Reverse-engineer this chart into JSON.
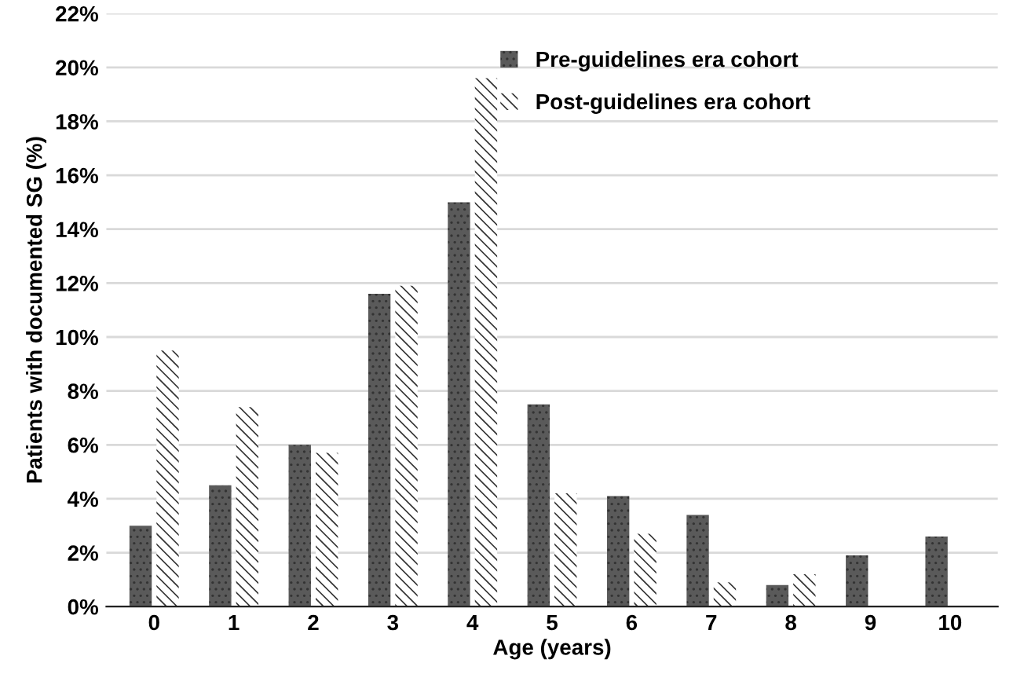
{
  "chart_data": {
    "type": "bar",
    "xlabel": "Age (years)",
    "ylabel": "Patients with documented SG (%)",
    "categories": [
      "0",
      "1",
      "2",
      "3",
      "4",
      "5",
      "6",
      "7",
      "8",
      "9",
      "10"
    ],
    "series": [
      {
        "name": "Pre-guidelines era cohort",
        "color": "#5a5a5a",
        "values": [
          3.0,
          4.5,
          6.0,
          11.6,
          15.0,
          7.5,
          4.1,
          3.4,
          0.8,
          1.9,
          2.6
        ]
      },
      {
        "name": "Post-guidelines era cohort",
        "color": "#ffffff",
        "values": [
          9.5,
          7.4,
          5.7,
          11.9,
          19.6,
          4.2,
          2.7,
          0.9,
          1.2,
          null,
          null
        ]
      }
    ],
    "ylim": [
      0,
      22
    ],
    "yticks": [
      {
        "value": 0,
        "label": "0%"
      },
      {
        "value": 2,
        "label": "2%"
      },
      {
        "value": 4,
        "label": "4%"
      },
      {
        "value": 6,
        "label": "6%"
      },
      {
        "value": 8,
        "label": "8%"
      },
      {
        "value": 10,
        "label": "10%"
      },
      {
        "value": 12,
        "label": "12%"
      },
      {
        "value": 14,
        "label": "14%"
      },
      {
        "value": 16,
        "label": "16%"
      },
      {
        "value": 18,
        "label": "18%"
      },
      {
        "value": 20,
        "label": "20%"
      },
      {
        "value": 22,
        "label": "22%"
      }
    ],
    "grid": "y",
    "legend": "top"
  }
}
